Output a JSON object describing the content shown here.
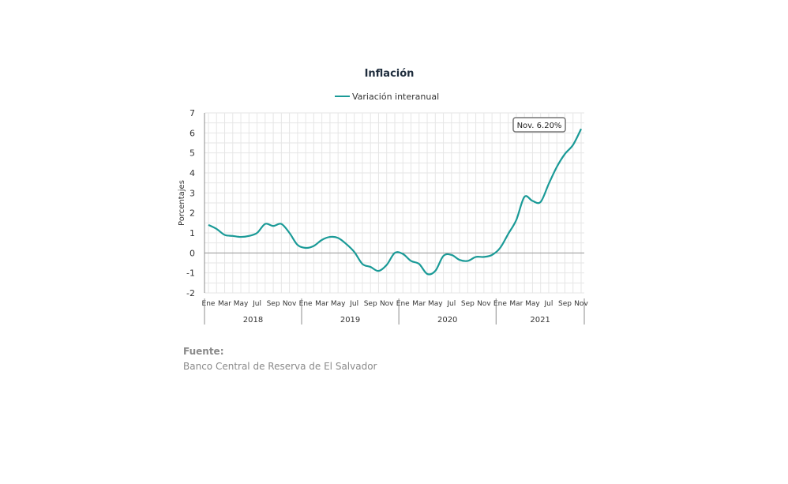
{
  "chart_data": {
    "type": "line",
    "title": "Inflación",
    "ylabel": "Porcentajes",
    "xlabel": "",
    "ylim": [
      -2,
      7
    ],
    "yticks": [
      -2,
      -1,
      0,
      1,
      2,
      3,
      4,
      5,
      6,
      7
    ],
    "grid": true,
    "legend_position": "top-center",
    "month_labels": [
      "Ene",
      "Mar",
      "May",
      "Jul",
      "Sep",
      "Nov"
    ],
    "years": [
      "2018",
      "2019",
      "2020",
      "2021"
    ],
    "series": [
      {
        "name": "Variación interanual",
        "color": "#1a9a97",
        "values": [
          1.4,
          1.2,
          0.9,
          0.85,
          0.8,
          0.85,
          1.0,
          1.45,
          1.35,
          1.45,
          1.0,
          0.4,
          0.25,
          0.35,
          0.65,
          0.8,
          0.75,
          0.45,
          0.05,
          -0.55,
          -0.7,
          -0.9,
          -0.6,
          0.0,
          -0.05,
          -0.4,
          -0.55,
          -1.05,
          -0.9,
          -0.15,
          -0.1,
          -0.35,
          -0.4,
          -0.2,
          -0.2,
          -0.1,
          0.25,
          0.95,
          1.65,
          2.8,
          2.6,
          2.55,
          3.45,
          4.3,
          4.95,
          5.4,
          6.2
        ]
      }
    ],
    "annotation": "Nov. 6.20%"
  },
  "source": {
    "heading": "Fuente:",
    "text": "Banco Central de Reserva de El Salvador"
  }
}
